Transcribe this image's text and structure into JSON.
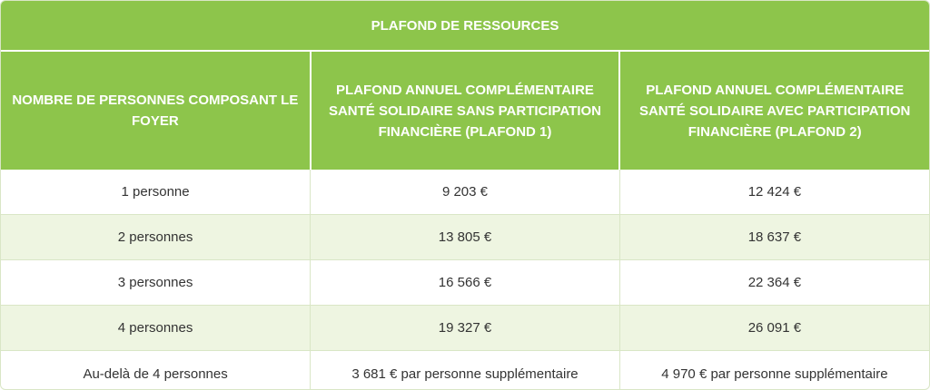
{
  "table": {
    "title": "PLAFOND DE RESSOURCES",
    "headers": [
      "NOMBRE DE PERSONNES COMPOSANT LE FOYER",
      "PLAFOND ANNUEL COMPLÉMENTAIRE SANTÉ SOLIDAIRE SANS PARTICIPATION FINANCIÈRE (PLAFOND 1)",
      "PLAFOND ANNUEL COMPLÉMENTAIRE SANTÉ SOLIDAIRE AVEC PARTICIPATION FINANCIÈRE (PLAFOND 2)"
    ],
    "rows": [
      [
        "1 personne",
        "9 203 €",
        "12 424 €"
      ],
      [
        "2 personnes",
        "13 805 €",
        "18 637 €"
      ],
      [
        "3 personnes",
        "16 566 €",
        "22 364 €"
      ],
      [
        "4 personnes",
        "19 327 €",
        "26 091 €"
      ],
      [
        "Au-delà de 4 personnes",
        "3 681 € par personne supplémentaire",
        "4 970 € par personne supplémentaire"
      ]
    ]
  }
}
